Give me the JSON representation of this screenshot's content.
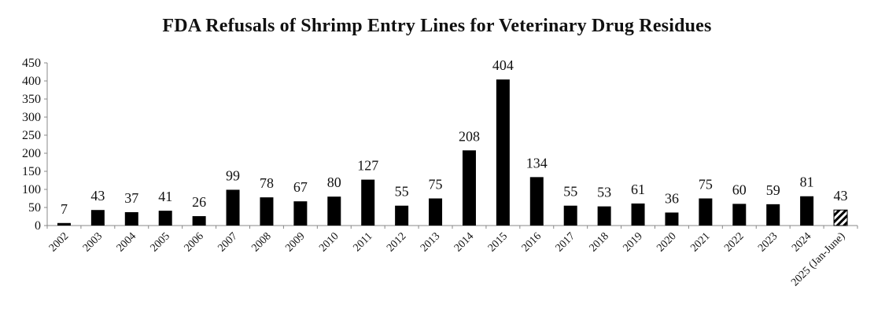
{
  "chart_data": {
    "type": "bar",
    "title": "FDA Refusals of Shrimp  Entry  Lines for Veterinary  Drug  Residues",
    "xlabel": "",
    "ylabel": "",
    "ylim": [
      0,
      450
    ],
    "yticks": [
      0,
      50,
      100,
      150,
      200,
      250,
      300,
      350,
      400,
      450
    ],
    "grid": false,
    "legend": "none",
    "categories": [
      "2002",
      "2003",
      "2004",
      "2005",
      "2006",
      "2007",
      "2008",
      "2009",
      "2010",
      "2011",
      "2012",
      "2013",
      "2014",
      "2015",
      "2016",
      "2017",
      "2018",
      "2019",
      "2020",
      "2021",
      "2022",
      "2023",
      "2024",
      "2025 (Jan-June)"
    ],
    "values": [
      7,
      43,
      37,
      41,
      26,
      99,
      78,
      67,
      80,
      127,
      55,
      75,
      208,
      404,
      134,
      55,
      53,
      61,
      36,
      75,
      60,
      59,
      81,
      43
    ],
    "data_labels": [
      "7",
      "43",
      "37",
      "41",
      "26",
      "99",
      "78",
      "67",
      "80",
      "127",
      "55",
      "75",
      "208",
      "404",
      "134",
      "55",
      "53",
      "61",
      "36",
      "75",
      "60",
      "59",
      "81",
      "43"
    ],
    "bar_color": "#000000",
    "partial_year_style": "hatched",
    "partial_year_category": "2025 (Jan-June)"
  }
}
